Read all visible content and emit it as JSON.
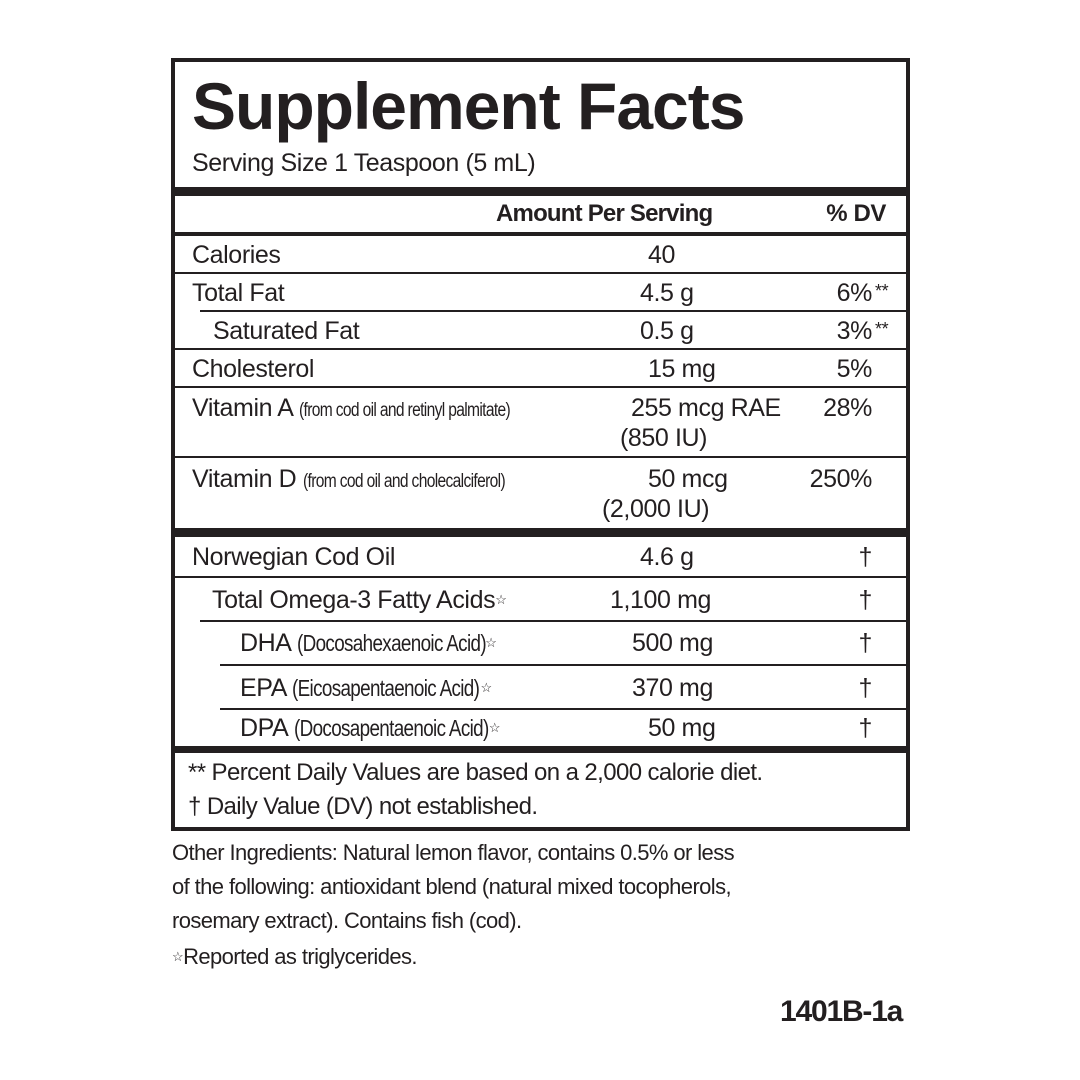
{
  "title": "Supplement Facts",
  "serving_size": "Serving Size 1 Teaspoon (5 mL)",
  "header": {
    "amount": "Amount Per Serving",
    "dv": "% DV"
  },
  "nutrients": [
    {
      "name": "Calories",
      "amount": "40",
      "dv": ""
    },
    {
      "name": "Total Fat",
      "amount": "4.5 g",
      "dv": "6%",
      "mark": "**"
    },
    {
      "name": "Saturated Fat",
      "amount": "0.5 g",
      "dv": "3%",
      "mark": "**"
    },
    {
      "name": "Cholesterol",
      "amount": "15 mg",
      "dv": "5%"
    },
    {
      "name": "Vitamin A",
      "source": "(from cod oil and retinyl palmitate)",
      "amount": "255 mcg RAE",
      "amount2": "(850 IU)",
      "dv": "28%"
    },
    {
      "name": "Vitamin D",
      "source": "(from cod oil and cholecalciferol)",
      "amount": "50 mcg",
      "amount2": "(2,000 IU)",
      "dv": "250%"
    }
  ],
  "ingredients": [
    {
      "name": "Norwegian Cod Oil",
      "amount": "4.6 g",
      "dv": "†"
    },
    {
      "name": "Total Omega-3 Fatty Acids",
      "star": "☆",
      "amount": "1,100 mg",
      "dv": "†"
    },
    {
      "name": "DHA",
      "detail": "(Docosahexaenoic Acid)",
      "star": "☆",
      "amount": "500 mg",
      "dv": "†"
    },
    {
      "name": "EPA",
      "detail": "(Eicosapentaenoic Acid)",
      "star": "☆",
      "amount": "370 mg",
      "dv": "†"
    },
    {
      "name": "DPA",
      "detail": "(Docosapentaenoic Acid)",
      "star": "☆",
      "amount": "50 mg",
      "dv": "†"
    }
  ],
  "footnotes": [
    "** Percent Daily Values are based on a 2,000 calorie diet.",
    "† Daily Value (DV) not established."
  ],
  "other_ingredients": [
    "Other Ingredients: Natural lemon flavor, contains 0.5% or less",
    "of the following: antioxidant blend (natural mixed tocopherols,",
    "rosemary extract). Contains fish (cod)."
  ],
  "triglyceride_note": {
    "star": "☆",
    "text": "Reported as triglycerides."
  },
  "code": "1401B-1a"
}
